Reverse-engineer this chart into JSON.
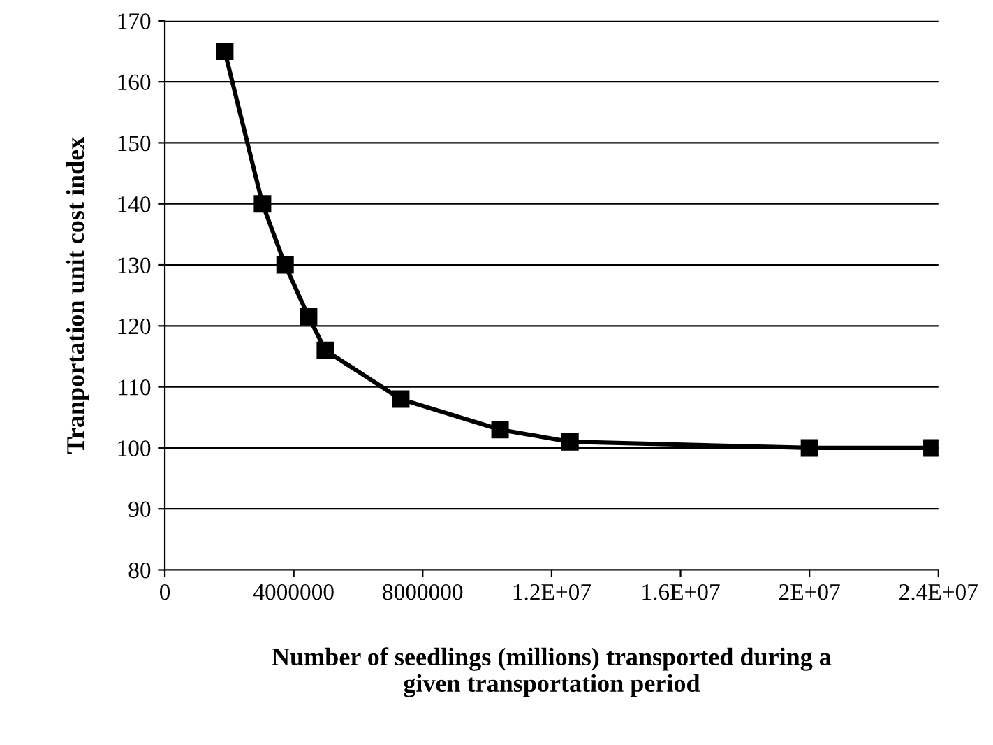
{
  "chart_data": {
    "type": "line",
    "xlabel": "Number of seedlings (millions) transported during a\ngiven transportation period",
    "ylabel": "Tranportation unit cost index",
    "x": [
      1860000,
      3030000,
      3730000,
      4460000,
      4980000,
      7320000,
      10400000,
      12570000,
      20000000,
      23800000
    ],
    "series": [
      {
        "color": "#000000",
        "values": [
          165,
          140,
          130,
          121.5,
          116,
          108,
          103,
          101,
          100,
          100
        ]
      }
    ],
    "xlim": [
      0,
      24000000
    ],
    "xticks": [
      0,
      4000000,
      8000000,
      {
        "value": 12000000,
        "label": "1.2E+07"
      },
      {
        "value": 16000000,
        "label": "1.6E+07"
      },
      {
        "value": 20000000,
        "label": "2E+07"
      },
      {
        "value": 24000000,
        "label": "2.4E+07"
      }
    ],
    "ylim": [
      80,
      170
    ],
    "yticks": [
      80,
      90,
      100,
      110,
      120,
      130,
      140,
      150,
      160,
      170
    ],
    "grid": "y",
    "marker": "square",
    "line_style": "solid",
    "legend": false
  }
}
